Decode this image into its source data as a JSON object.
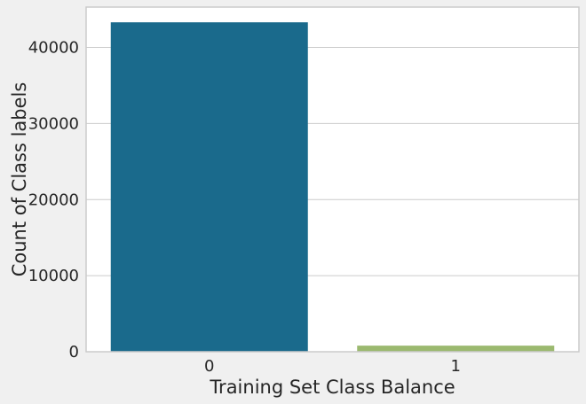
{
  "chart_data": {
    "type": "bar",
    "categories": [
      "0",
      "1"
    ],
    "values": [
      43300,
      800
    ],
    "xlabel": "Training Set Class Balance",
    "ylabel": "Count of Class labels",
    "ylim": [
      0,
      45300
    ],
    "yticks": [
      0,
      10000,
      20000,
      30000,
      40000
    ],
    "grid": "horizontal",
    "colors": {
      "background": "#f0f0f0",
      "plot_background": "#ffffff",
      "bars": [
        "#1a6a8c",
        "#9bb96f"
      ],
      "grid": "#cbcbcb",
      "frame": "#cbcbcb"
    }
  }
}
